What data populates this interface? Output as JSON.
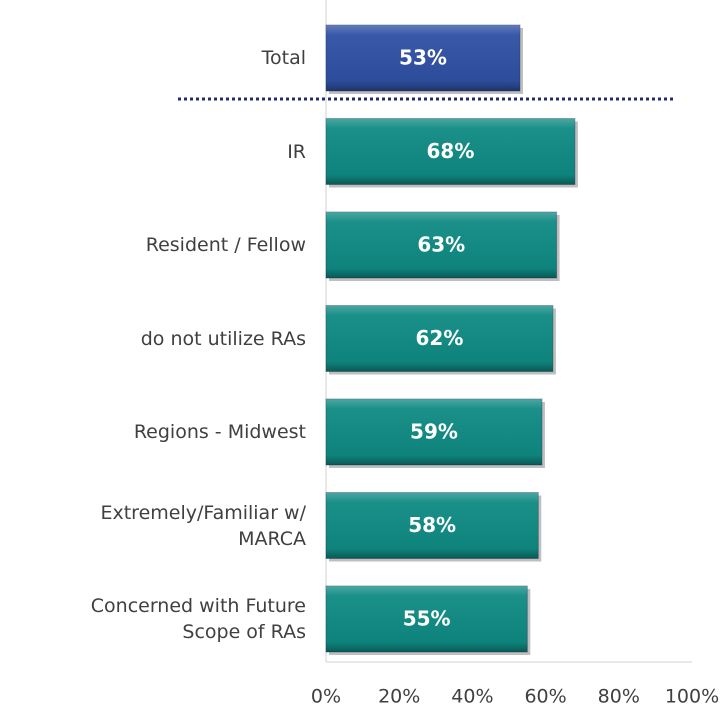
{
  "chart_data": {
    "type": "bar",
    "orientation": "horizontal",
    "categories": [
      "Total",
      "IR",
      "Resident / Fellow",
      "do not utilize RAs",
      "Regions - Midwest",
      "Extremely/Familiar w/\nMARCA",
      "Concerned with Future\nScope of RAs"
    ],
    "values": [
      53,
      68,
      63,
      62,
      59,
      58,
      55
    ],
    "value_labels": [
      "53%",
      "68%",
      "63%",
      "62%",
      "59%",
      "58%",
      "55%"
    ],
    "colors": [
      "#2f50a3",
      "#0f8a83",
      "#0f8a83",
      "#0f8a83",
      "#0f8a83",
      "#0f8a83",
      "#0f8a83"
    ],
    "xlim": [
      0,
      100
    ],
    "xticks": [
      {
        "value": 0,
        "label": "0%"
      },
      {
        "value": 20,
        "label": "20%"
      },
      {
        "value": 40,
        "label": "40%"
      },
      {
        "value": 60,
        "label": "60%"
      },
      {
        "value": 80,
        "label": "80%"
      },
      {
        "value": 100,
        "label": "100%"
      }
    ],
    "grid": false
  }
}
